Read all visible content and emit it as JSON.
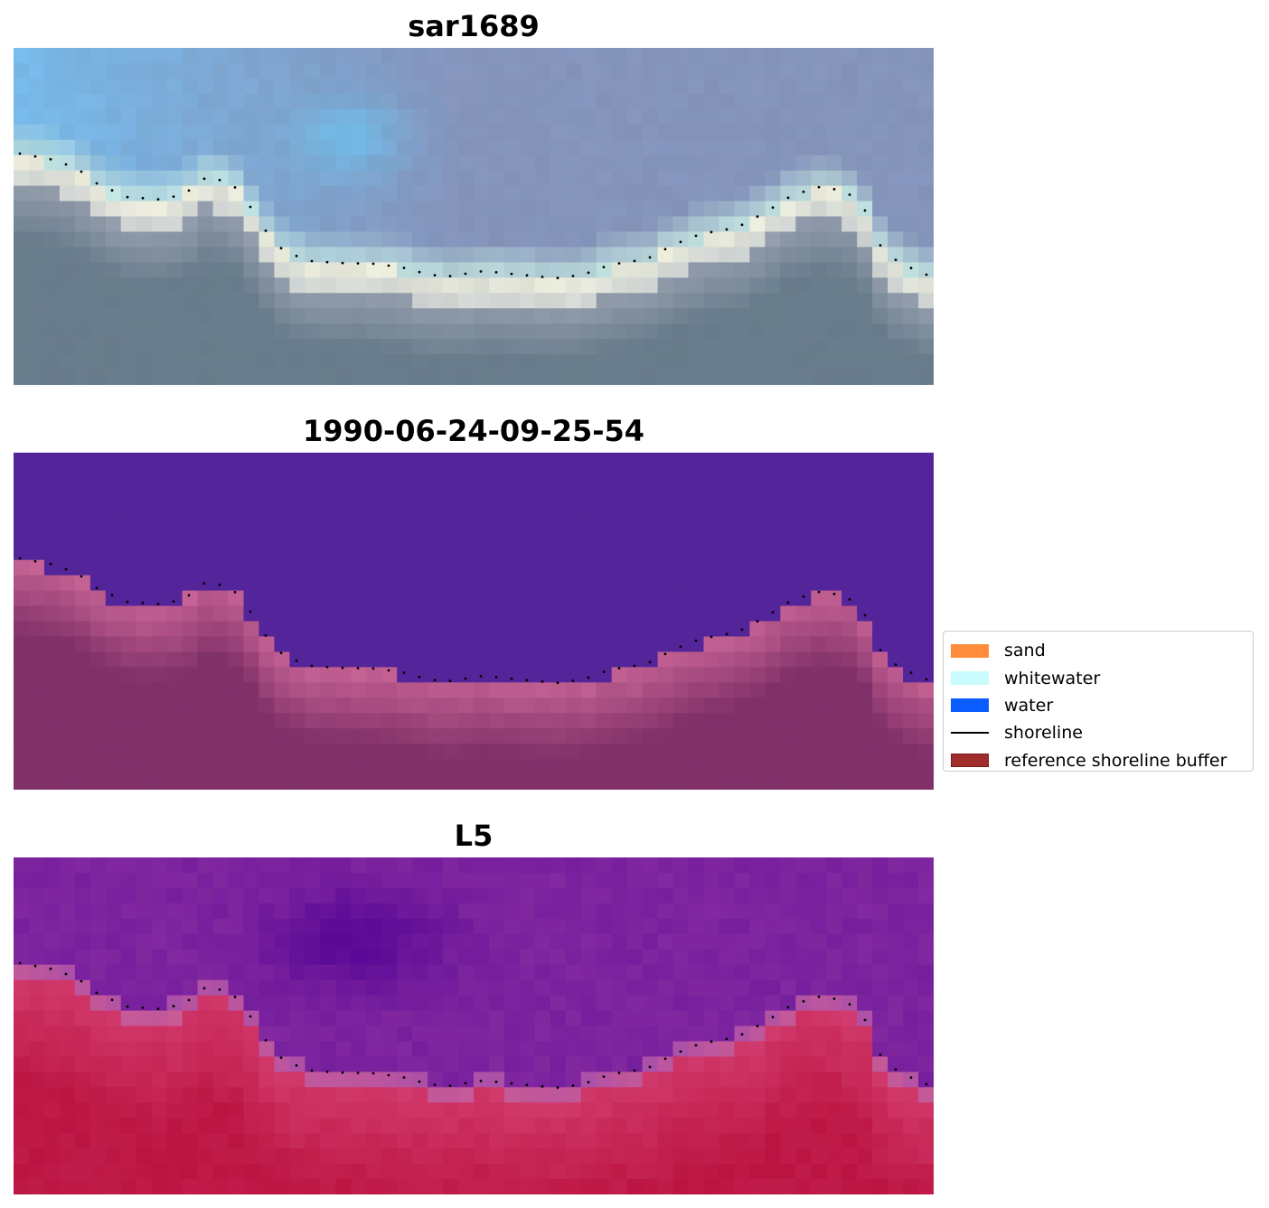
{
  "panels": [
    {
      "title": "sar1689",
      "kind": "rgb"
    },
    {
      "title": "1990-06-24-09-25-54",
      "kind": "classified"
    },
    {
      "title": "L5",
      "kind": "index"
    }
  ],
  "legend": {
    "items": [
      {
        "label": "sand",
        "type": "patch",
        "color": "#ff8c3b"
      },
      {
        "label": "whitewater",
        "type": "patch",
        "color": "#c8fcfc"
      },
      {
        "label": "water",
        "type": "patch",
        "color": "#0a5cff"
      },
      {
        "label": "shoreline",
        "type": "line",
        "color": "#000000"
      },
      {
        "label": "reference shoreline buffer",
        "type": "patch",
        "color": "#a02c2c"
      }
    ]
  },
  "colors": {
    "shoreline": "#000000",
    "ocean_classified": "#54249a",
    "buffer_overlay": "#a02c2c"
  }
}
